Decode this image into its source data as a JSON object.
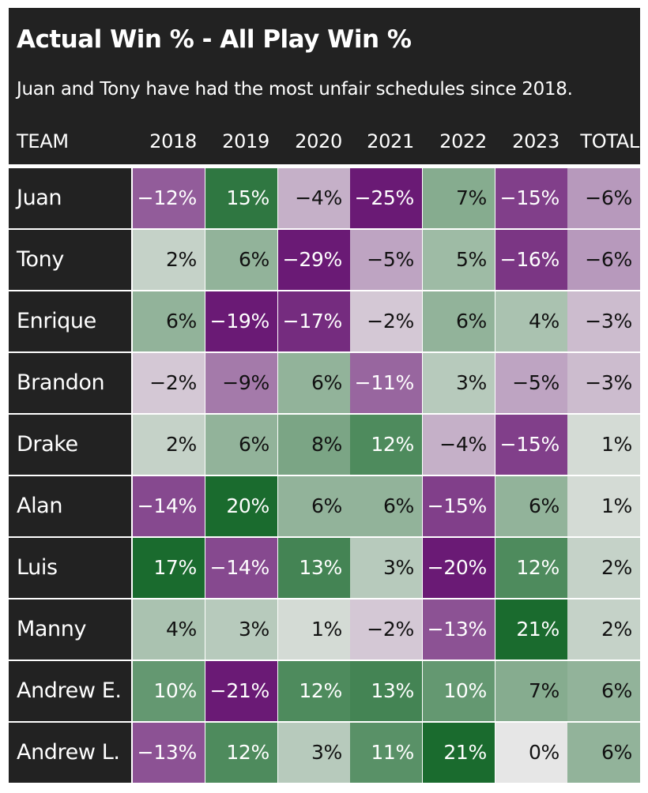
{
  "chart_data": {
    "type": "heatmap",
    "title": "Actual Win % - All Play Win %",
    "subtitle": "Juan and Tony have had the most unfair schedules since 2018.",
    "row_header": "TEAM",
    "columns": [
      "2018",
      "2019",
      "2020",
      "2021",
      "2022",
      "2023",
      "TOTAL"
    ],
    "color_scale": {
      "negative": "#6a1a75",
      "neutral": "#e6e6e6",
      "positive": "#1a6b2e",
      "min": -0.25,
      "max": 0.2
    },
    "rows": [
      {
        "team": "Juan",
        "values": [
          -0.12,
          0.15,
          -0.04,
          -0.25,
          0.07,
          -0.15,
          -0.06
        ],
        "labels": [
          "−12%",
          "15%",
          "−4%",
          "−25%",
          "7%",
          "−15%",
          "−6%"
        ]
      },
      {
        "team": "Tony",
        "values": [
          0.02,
          0.06,
          -0.29,
          -0.05,
          0.05,
          -0.16,
          -0.06
        ],
        "labels": [
          "2%",
          "6%",
          "−29%",
          "−5%",
          "5%",
          "−16%",
          "−6%"
        ]
      },
      {
        "team": "Enrique",
        "values": [
          0.06,
          -0.19,
          -0.17,
          -0.02,
          0.06,
          0.04,
          -0.03
        ],
        "labels": [
          "6%",
          "−19%",
          "−17%",
          "−2%",
          "6%",
          "4%",
          "−3%"
        ]
      },
      {
        "team": "Brandon",
        "values": [
          -0.02,
          -0.09,
          0.06,
          -0.11,
          0.03,
          -0.05,
          -0.03
        ],
        "labels": [
          "−2%",
          "−9%",
          "6%",
          "−11%",
          "3%",
          "−5%",
          "−3%"
        ]
      },
      {
        "team": "Drake",
        "values": [
          0.02,
          0.06,
          0.08,
          0.12,
          -0.04,
          -0.15,
          0.01
        ],
        "labels": [
          "2%",
          "6%",
          "8%",
          "12%",
          "−4%",
          "−15%",
          "1%"
        ]
      },
      {
        "team": "Alan",
        "values": [
          -0.14,
          0.2,
          0.06,
          0.06,
          -0.15,
          0.06,
          0.01
        ],
        "labels": [
          "−14%",
          "20%",
          "6%",
          "6%",
          "−15%",
          "6%",
          "1%"
        ]
      },
      {
        "team": "Luis",
        "values": [
          0.17,
          -0.14,
          0.13,
          0.03,
          -0.2,
          0.12,
          0.02
        ],
        "labels": [
          "17%",
          "−14%",
          "13%",
          "3%",
          "−20%",
          "12%",
          "2%"
        ]
      },
      {
        "team": "Manny",
        "values": [
          0.04,
          0.03,
          0.01,
          -0.02,
          -0.13,
          0.21,
          0.02
        ],
        "labels": [
          "4%",
          "3%",
          "1%",
          "−2%",
          "−13%",
          "21%",
          "2%"
        ]
      },
      {
        "team": "Andrew E.",
        "values": [
          0.1,
          -0.21,
          0.12,
          0.13,
          0.1,
          0.07,
          0.06
        ],
        "labels": [
          "10%",
          "−21%",
          "12%",
          "13%",
          "10%",
          "7%",
          "6%"
        ]
      },
      {
        "team": "Andrew L.",
        "values": [
          -0.13,
          0.12,
          0.03,
          0.11,
          0.21,
          0.0,
          0.06
        ],
        "labels": [
          "−13%",
          "12%",
          "3%",
          "11%",
          "21%",
          "0%",
          "6%"
        ]
      }
    ]
  }
}
